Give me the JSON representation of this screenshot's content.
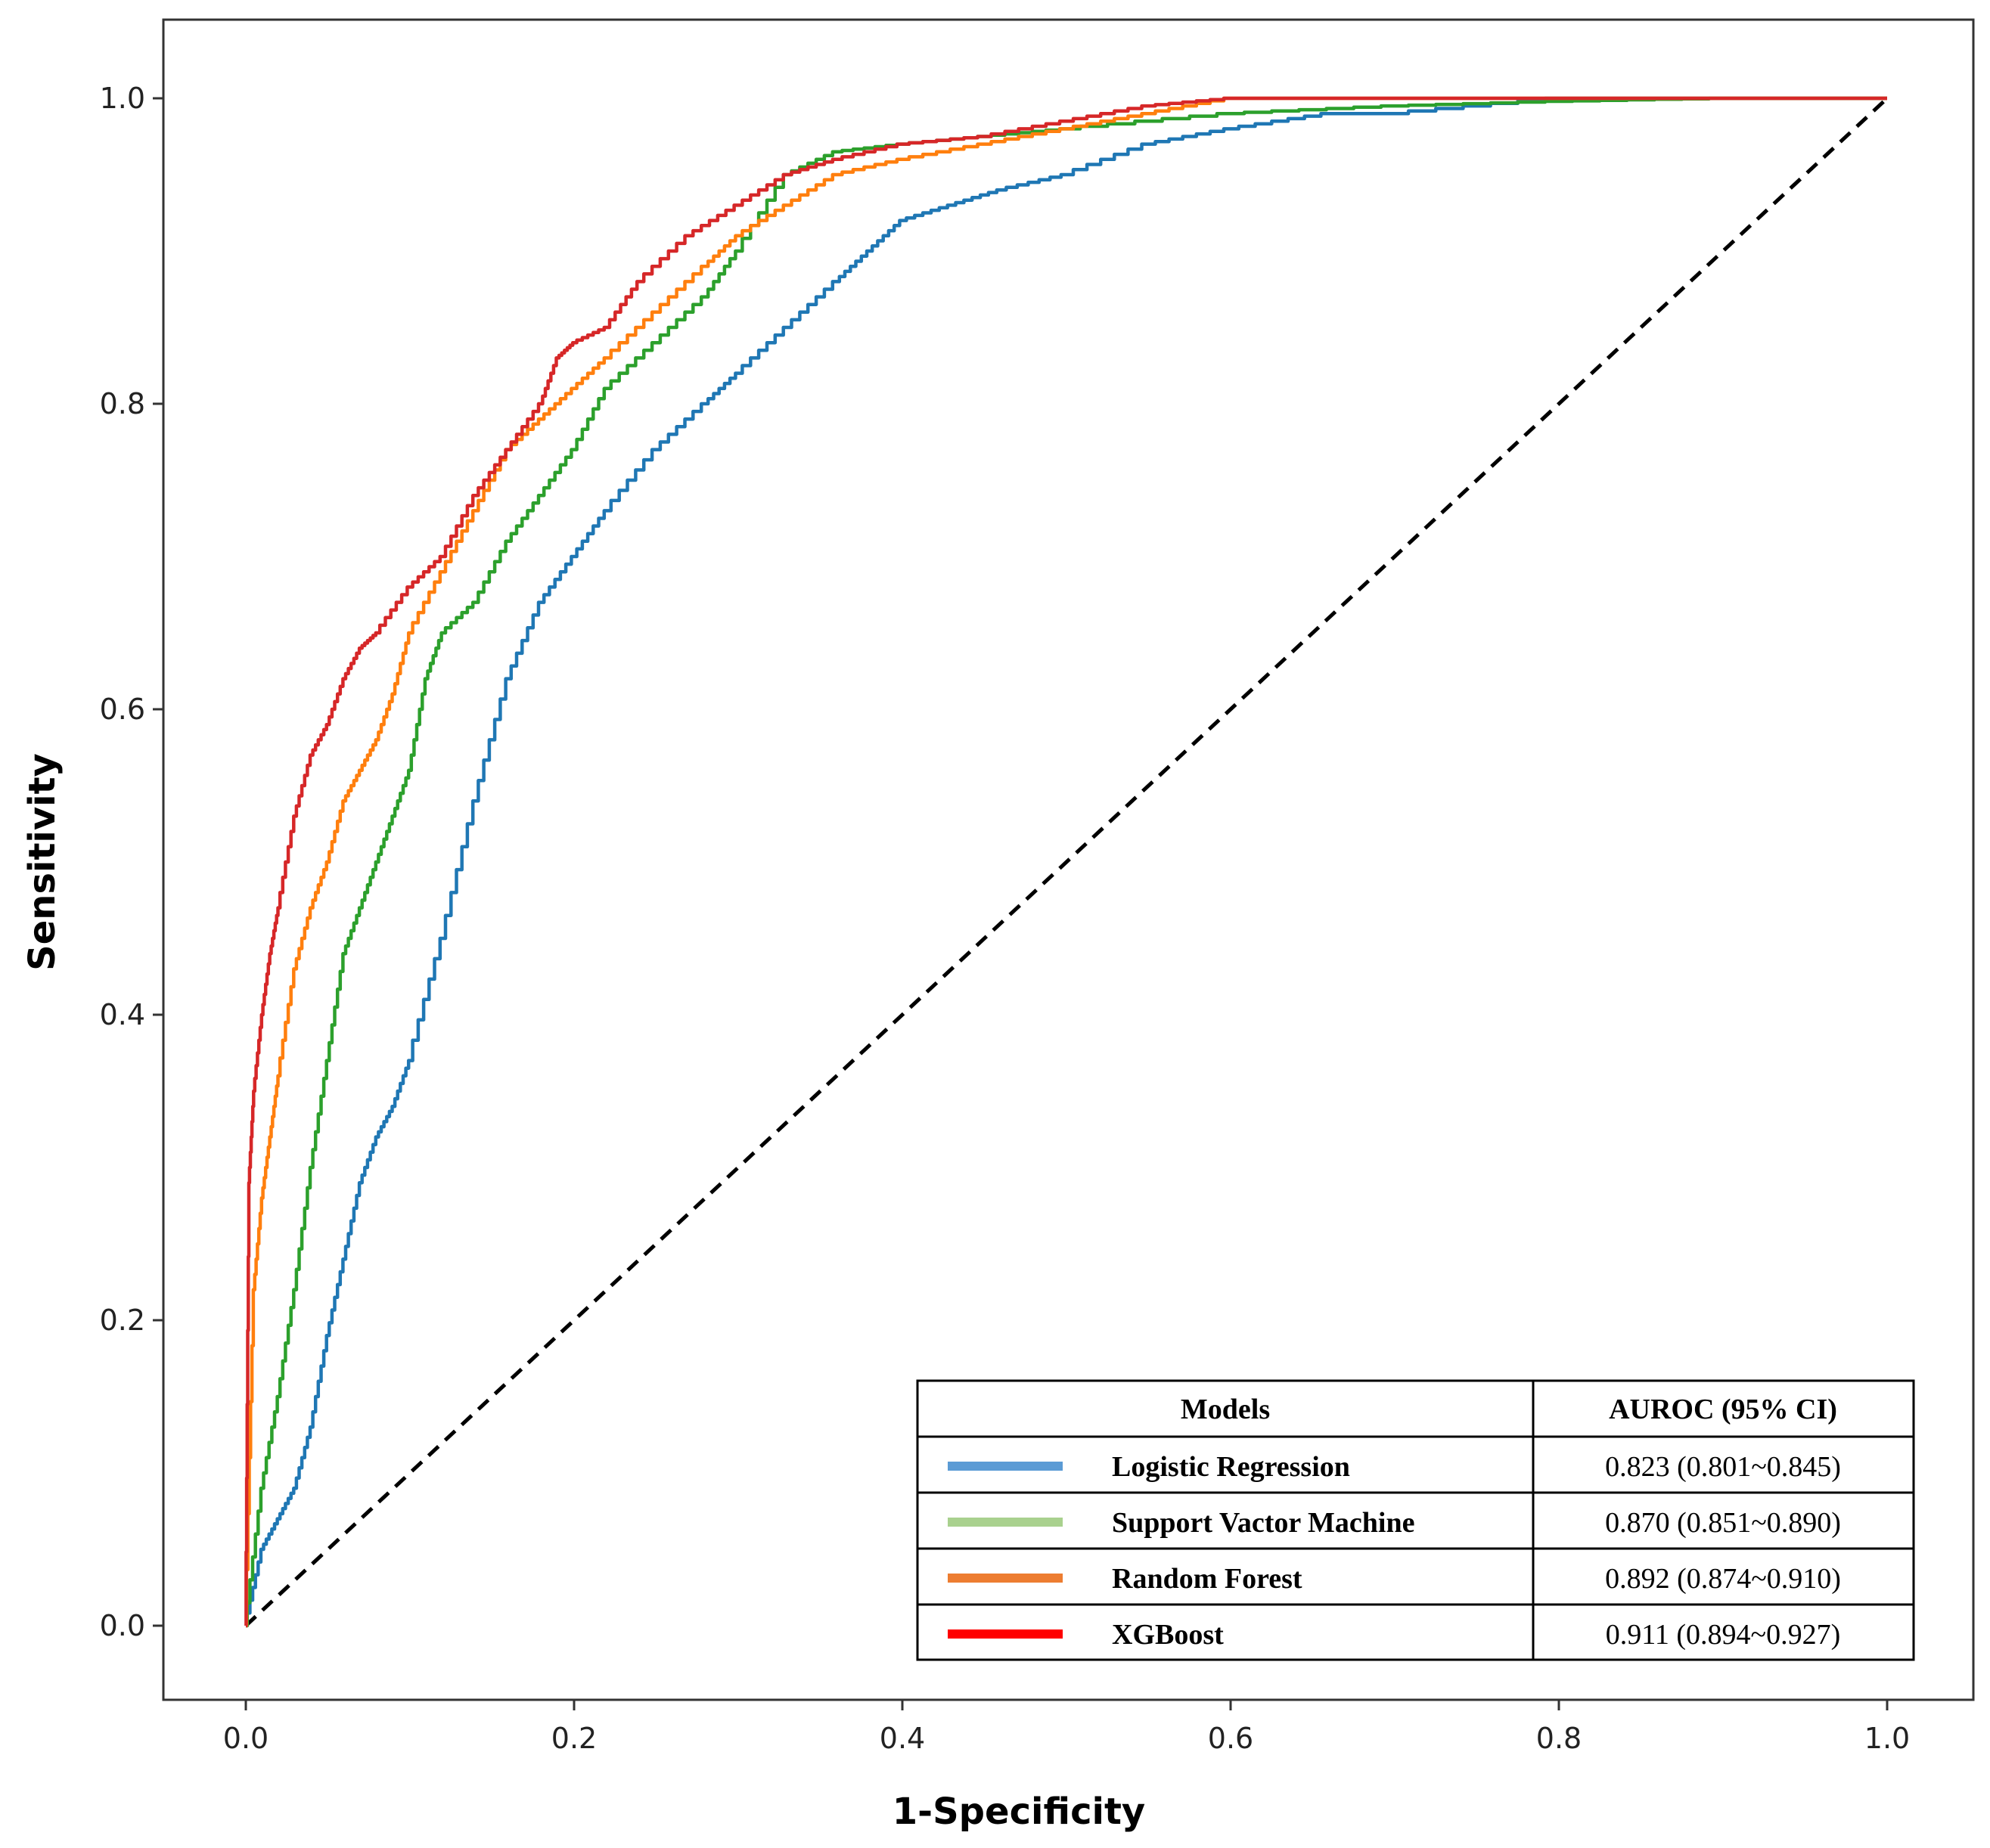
{
  "chart_data": {
    "type": "line",
    "xlabel": "1-Specificity",
    "ylabel": "Sensitivity",
    "xlim": [
      -0.05,
      1.05
    ],
    "ylim": [
      -0.05,
      1.05
    ],
    "xticks": [
      "0.0",
      "0.2",
      "0.4",
      "0.6",
      "0.8",
      "1.0"
    ],
    "yticks": [
      "0.0",
      "0.2",
      "0.4",
      "0.6",
      "0.8",
      "1.0"
    ],
    "grid": false,
    "series": [
      {
        "name": "Logistic Regression",
        "color": "#1f77b4",
        "x": [
          0.0,
          0.01,
          0.02,
          0.03,
          0.04,
          0.05,
          0.06,
          0.07,
          0.08,
          0.09,
          0.1,
          0.12,
          0.14,
          0.16,
          0.18,
          0.2,
          0.22,
          0.25,
          0.28,
          0.3,
          0.33,
          0.36,
          0.38,
          0.4,
          0.43,
          0.46,
          0.5,
          0.55,
          0.6,
          0.66,
          0.7,
          0.8,
          0.9,
          1.0
        ],
        "y": [
          0.0,
          0.05,
          0.07,
          0.09,
          0.13,
          0.19,
          0.24,
          0.29,
          0.32,
          0.34,
          0.37,
          0.45,
          0.54,
          0.62,
          0.67,
          0.7,
          0.73,
          0.77,
          0.8,
          0.82,
          0.85,
          0.88,
          0.9,
          0.92,
          0.93,
          0.94,
          0.95,
          0.97,
          0.98,
          0.99,
          0.99,
          1.0,
          1.0,
          1.0
        ]
      },
      {
        "name": "Support Vactor Machine",
        "color": "#2ca02c",
        "x": [
          0.0,
          0.01,
          0.02,
          0.03,
          0.04,
          0.05,
          0.06,
          0.07,
          0.08,
          0.09,
          0.1,
          0.11,
          0.12,
          0.14,
          0.16,
          0.18,
          0.2,
          0.22,
          0.25,
          0.28,
          0.3,
          0.33,
          0.36,
          0.4,
          0.45,
          0.5,
          0.6,
          0.7,
          0.8,
          0.9,
          1.0
        ],
        "y": [
          0.0,
          0.09,
          0.15,
          0.22,
          0.3,
          0.37,
          0.44,
          0.47,
          0.5,
          0.53,
          0.56,
          0.62,
          0.65,
          0.67,
          0.71,
          0.74,
          0.77,
          0.81,
          0.84,
          0.87,
          0.9,
          0.95,
          0.965,
          0.97,
          0.975,
          0.98,
          0.99,
          0.995,
          0.998,
          1.0,
          1.0
        ]
      },
      {
        "name": "Random Forest",
        "color": "#ff7f0e",
        "x": [
          0.0,
          0.005,
          0.01,
          0.015,
          0.02,
          0.03,
          0.04,
          0.05,
          0.06,
          0.07,
          0.08,
          0.09,
          0.1,
          0.12,
          0.14,
          0.16,
          0.18,
          0.2,
          0.22,
          0.25,
          0.28,
          0.3,
          0.33,
          0.36,
          0.4,
          0.45,
          0.5,
          0.55,
          0.6,
          0.7,
          0.8,
          1.0
        ],
        "y": [
          0.0,
          0.22,
          0.28,
          0.32,
          0.36,
          0.43,
          0.47,
          0.5,
          0.54,
          0.56,
          0.58,
          0.61,
          0.65,
          0.69,
          0.73,
          0.77,
          0.79,
          0.81,
          0.83,
          0.86,
          0.89,
          0.91,
          0.93,
          0.95,
          0.96,
          0.97,
          0.98,
          0.99,
          1.0,
          1.0,
          1.0,
          1.0
        ]
      },
      {
        "name": "XGBoost",
        "color": "#d62728",
        "x": [
          0.0,
          0.002,
          0.005,
          0.01,
          0.015,
          0.02,
          0.03,
          0.04,
          0.05,
          0.06,
          0.07,
          0.08,
          0.1,
          0.12,
          0.14,
          0.16,
          0.18,
          0.19,
          0.2,
          0.22,
          0.24,
          0.27,
          0.3,
          0.33,
          0.36,
          0.4,
          0.45,
          0.5,
          0.55,
          0.6,
          0.7,
          0.8,
          1.0
        ],
        "y": [
          0.0,
          0.29,
          0.35,
          0.4,
          0.44,
          0.47,
          0.53,
          0.57,
          0.59,
          0.62,
          0.64,
          0.65,
          0.68,
          0.7,
          0.74,
          0.77,
          0.8,
          0.83,
          0.84,
          0.85,
          0.88,
          0.91,
          0.93,
          0.95,
          0.96,
          0.97,
          0.975,
          0.985,
          0.995,
          1.0,
          1.0,
          1.0,
          1.0
        ]
      }
    ],
    "reference_line": {
      "x": [
        0,
        1
      ],
      "y": [
        0,
        1
      ],
      "style": "dashed",
      "color": "#000000"
    },
    "legend_table": {
      "header_models": "Models",
      "header_auroc": "AUROC (95% CI)",
      "rows": [
        {
          "model": "Logistic Regression",
          "auroc": "0.823 (0.801~0.845)",
          "swatch": "#5b9bd5"
        },
        {
          "model": "Support Vactor Machine",
          "auroc": "0.870 (0.851~0.890)",
          "swatch": "#a9d18e"
        },
        {
          "model": "Random Forest",
          "auroc": "0.892 (0.874~0.910)",
          "swatch": "#ed7d31"
        },
        {
          "model": "XGBoost",
          "auroc": "0.911 (0.894~0.927)",
          "swatch": "#ff0000"
        }
      ],
      "placement": "bottom-right"
    }
  }
}
